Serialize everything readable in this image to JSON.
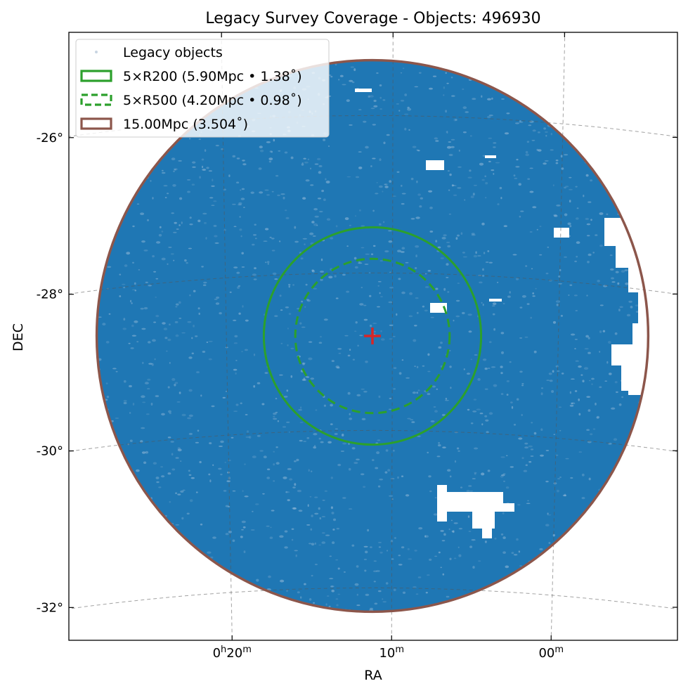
{
  "chart_data": {
    "type": "scatter",
    "title": "Legacy Survey Coverage - Objects: 496930",
    "xlabel": "RA",
    "ylabel": "DEC",
    "x_ticks": [
      {
        "ra_min": 20,
        "h": "0",
        "m": "20",
        "text": "0h20m"
      },
      {
        "ra_min": 10,
        "h": "",
        "m": "10",
        "text": "10m"
      },
      {
        "ra_min": 0,
        "h": "",
        "m": "00",
        "text": "00m"
      }
    ],
    "y_ticks": [
      {
        "dec": -26,
        "label": "-26°"
      },
      {
        "dec": -28,
        "label": "-28°"
      },
      {
        "dec": -30,
        "label": "-30°"
      },
      {
        "dec": -32,
        "label": "-32°"
      }
    ],
    "center": {
      "ra_min": 11.2,
      "dec": -28.8
    },
    "object_count": 496930,
    "grid": true,
    "legend_position": "upper-left",
    "legend": [
      {
        "label": "Legacy objects",
        "style": "point",
        "color": "#c8d4e2"
      },
      {
        "label": "5×R200 (5.90Mpc • 1.38˚)",
        "style": "solid",
        "color": "#2ca02c"
      },
      {
        "label": "5×R500 (4.20Mpc • 0.98˚)",
        "style": "dashed",
        "color": "#2ca02c"
      },
      {
        "label": "15.00Mpc (3.504˚)",
        "style": "solid",
        "color": "#8c564b"
      }
    ],
    "circles": [
      {
        "name": "5×R200",
        "radius_mpc": 5.9,
        "radius_deg": 1.38,
        "style": "solid",
        "color": "#2ca02c"
      },
      {
        "name": "5×R500",
        "radius_mpc": 4.2,
        "radius_deg": 0.98,
        "style": "dashed",
        "color": "#2ca02c"
      },
      {
        "name": "15.00Mpc",
        "radius_mpc": 15.0,
        "radius_deg": 3.504,
        "style": "solid",
        "color": "#8c564b"
      }
    ],
    "colors": {
      "objects": "#1f77b4",
      "r200": "#2ca02c",
      "r500": "#2ca02c",
      "outer": "#8c564b",
      "center_marker": "#d62728"
    }
  }
}
